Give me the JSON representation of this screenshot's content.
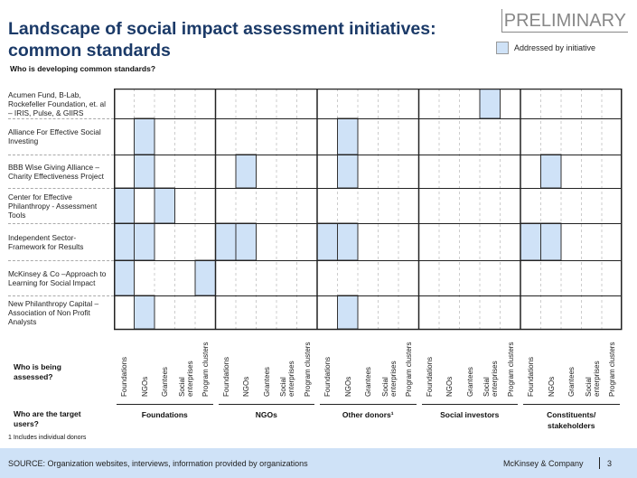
{
  "header": {
    "title_line1": "Landscape of social impact assessment initiatives:",
    "title_line2": "common standards",
    "stamp": "PRELIMINARY",
    "legend_label": "Addressed by initiative",
    "legend_color": "#cfe2f7",
    "subtitle": "Who is developing common standards?"
  },
  "rows": [
    {
      "label": "Acumen Fund, B-Lab, Rockefeller Foundation, et. al – IRIS, Pulse,  & GIIRS",
      "filled": [
        18
      ]
    },
    {
      "label": "Alliance For Effective Social Investing",
      "filled": [
        1,
        11
      ]
    },
    {
      "label": "BBB Wise Giving Alliance – Charity Effectiveness Project",
      "filled": [
        1,
        6,
        11,
        21
      ]
    },
    {
      "label": "Center for Effective Philanthropy - Assessment Tools",
      "filled": [
        0,
        2
      ]
    },
    {
      "label": "Independent Sector- Framework for Results",
      "filled": [
        0,
        1,
        5,
        6,
        10,
        11,
        20,
        21
      ]
    },
    {
      "label": "McKinsey & Co –Approach to Learning for Social Impact",
      "filled": [
        0,
        4
      ]
    },
    {
      "label": "New Philanthropy Capital – Association of Non Profit Analysts",
      "filled": [
        1,
        11
      ]
    }
  ],
  "axis": {
    "assessed_label": "Who is being assessed?",
    "users_label": "Who are the target users?",
    "subcolumns": [
      "Foundations",
      "NGOs",
      "Grantees",
      "Social enterprises",
      "Program clusters"
    ],
    "groups": [
      "Foundations",
      "NGOs",
      "Other donors¹",
      "Social investors",
      "Constituents/ stakeholders"
    ]
  },
  "footnote": "1 Includes individual donors",
  "footer": {
    "source": "SOURCE: Organization websites, interviews, information provided by organizations",
    "company": "McKinsey & Company",
    "page": "3"
  }
}
